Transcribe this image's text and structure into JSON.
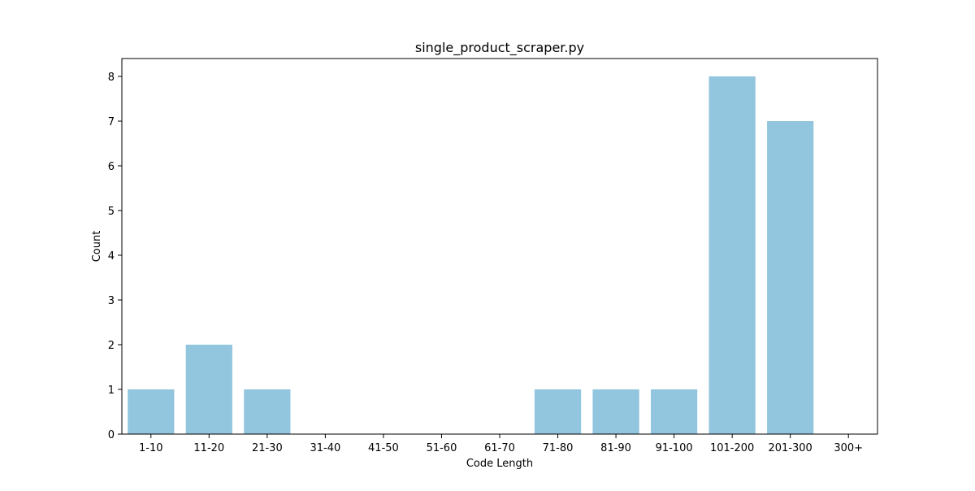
{
  "chart_data": {
    "type": "bar",
    "title": "single_product_scraper.py",
    "xlabel": "Code Length",
    "ylabel": "Count",
    "categories": [
      "1-10",
      "11-20",
      "21-30",
      "31-40",
      "41-50",
      "51-60",
      "61-70",
      "71-80",
      "81-90",
      "91-100",
      "101-200",
      "201-300",
      "300+"
    ],
    "values": [
      1,
      2,
      1,
      0,
      0,
      0,
      0,
      1,
      1,
      1,
      8,
      7,
      0
    ],
    "ylim": [
      0,
      8.4
    ],
    "yticks": [
      0,
      1,
      2,
      3,
      4,
      5,
      6,
      7,
      8
    ],
    "bar_color": "#92c5de",
    "grid": false,
    "legend": "none"
  }
}
